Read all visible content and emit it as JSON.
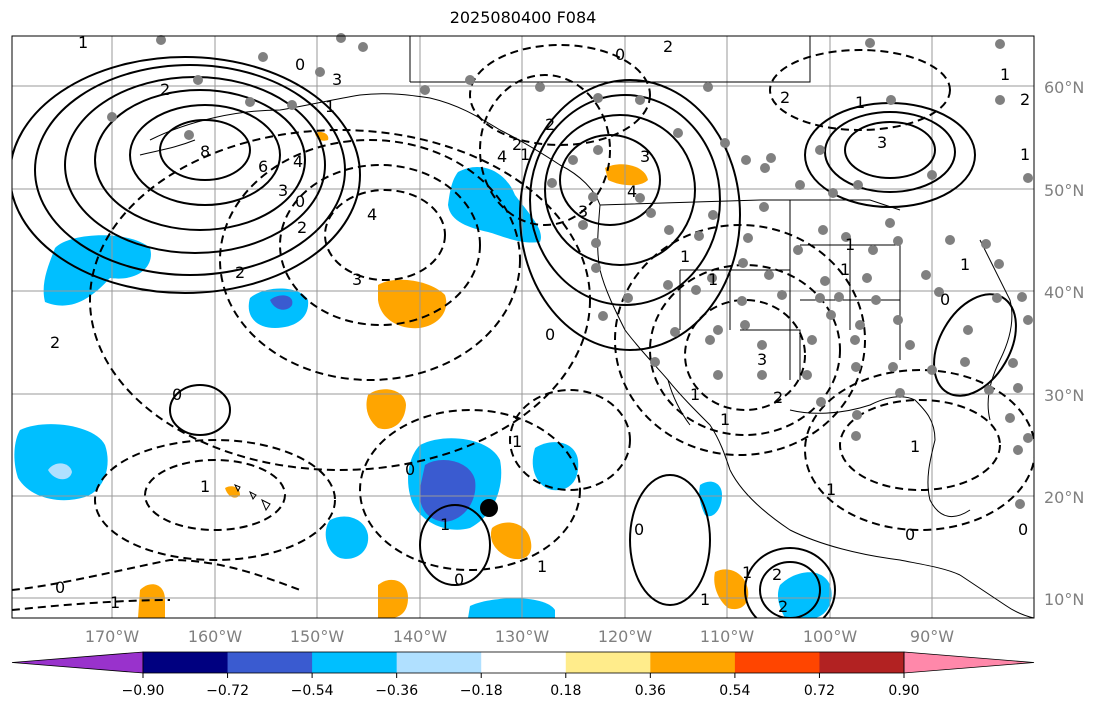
{
  "title": "2025080400 F084",
  "lat_labels": [
    "60°N",
    "50°N",
    "40°N",
    "30°N",
    "20°N",
    "10°N"
  ],
  "lon_labels": [
    "170°W",
    "160°W",
    "150°W",
    "140°W",
    "130°W",
    "120°W",
    "110°W",
    "100°W",
    "90°W"
  ],
  "colorbar": {
    "colors": [
      "#9932cc",
      "#000080",
      "#3a5bd0",
      "#00bfff",
      "#b0e0ff",
      "#ffffff",
      "#ffec8b",
      "#ffa500",
      "#ff4500",
      "#b22222",
      "#ff88aa"
    ],
    "tick_labels": [
      "−0.90",
      "−0.72",
      "−0.54",
      "−0.36",
      "−0.18",
      "0.18",
      "0.36",
      "0.54",
      "0.72",
      "0.90"
    ]
  },
  "contour_labels": [
    "2",
    "0",
    "3",
    "8",
    "6",
    "4",
    "3",
    "0",
    "2",
    "2",
    "4",
    "3",
    "2",
    "0",
    "1",
    "1",
    "2",
    "3",
    "4",
    "3",
    "2",
    "3",
    "2",
    "0",
    "1",
    "3",
    "2",
    "1",
    "2",
    "0",
    "0",
    "1",
    "1",
    "1",
    "0",
    "1",
    "0",
    "1",
    "2",
    "2",
    "0",
    "1",
    "1",
    "0",
    "0",
    "1",
    "2",
    "1",
    "1",
    "0",
    "1",
    "1",
    "4",
    "1",
    "1",
    "1",
    "1",
    "1",
    "1"
  ],
  "colors": {
    "background": "#ffffff",
    "grid": "#999999",
    "land": "#000000",
    "dot": "#808080",
    "axis_label": "#808080"
  },
  "marker": {
    "name": "tropical-cyclone-position"
  }
}
